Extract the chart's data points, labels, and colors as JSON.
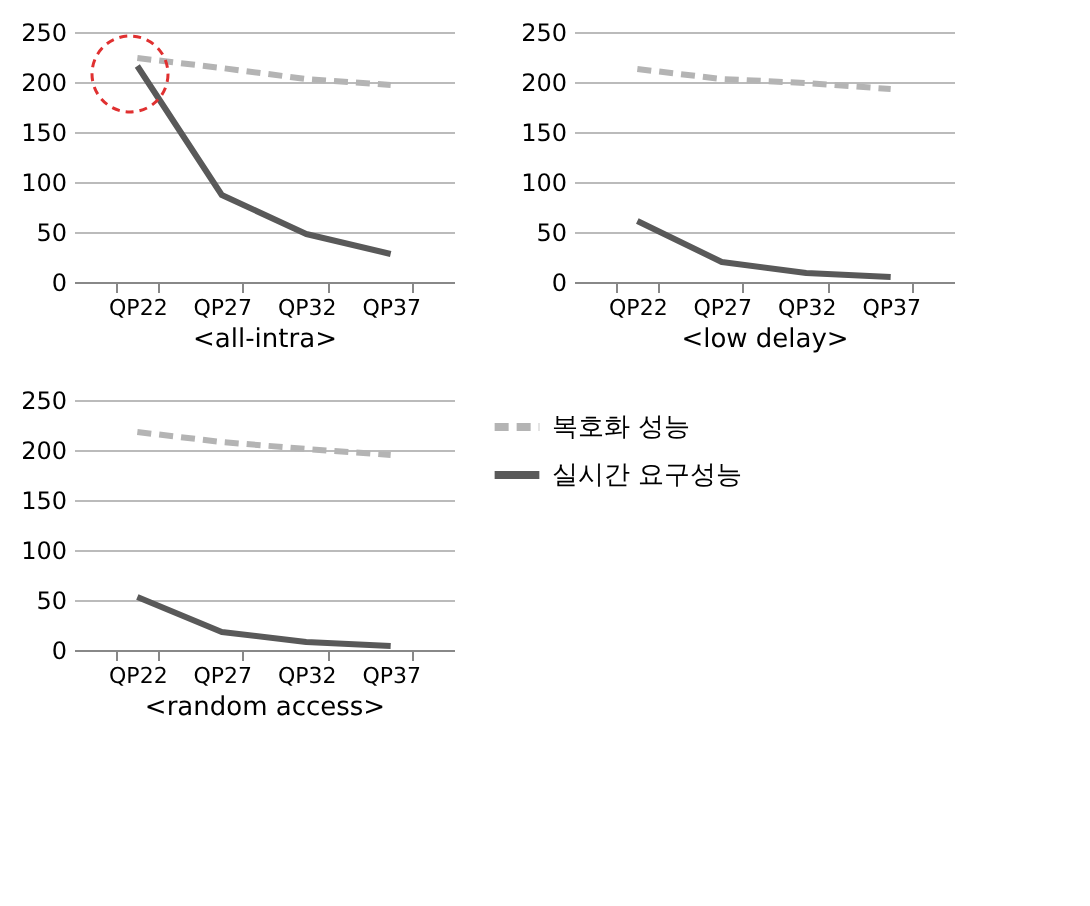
{
  "chart_data": [
    {
      "type": "line",
      "xlabel": "<all-intra>",
      "categories": [
        "QP22",
        "QP27",
        "QP32",
        "QP37"
      ],
      "ylim": [
        0,
        250
      ],
      "yticks": [
        0,
        50,
        100,
        150,
        200,
        250
      ],
      "grid": "y",
      "legend": false,
      "series": [
        {
          "color": "#b4b4b4",
          "line_style": "dashed",
          "values": [
            224,
            214,
            203,
            197
          ]
        },
        {
          "color": "#595959",
          "line_style": "solid",
          "values": [
            216,
            87,
            48,
            28
          ]
        }
      ]
    },
    {
      "type": "line",
      "xlabel": "<low delay>",
      "categories": [
        "QP22",
        "QP27",
        "QP32",
        "QP37"
      ],
      "ylim": [
        0,
        250
      ],
      "yticks": [
        0,
        50,
        100,
        150,
        200,
        250
      ],
      "grid": "y",
      "legend": false,
      "series": [
        {
          "color": "#b4b4b4",
          "line_style": "dashed",
          "values": [
            213,
            203,
            199,
            193
          ]
        },
        {
          "color": "#595959",
          "line_style": "solid",
          "values": [
            61,
            20,
            9,
            5
          ]
        }
      ]
    },
    {
      "type": "line",
      "xlabel": "<random access>",
      "categories": [
        "QP22",
        "QP27",
        "QP32",
        "QP37"
      ],
      "ylim": [
        0,
        250
      ],
      "yticks": [
        0,
        50,
        100,
        150,
        200,
        250
      ],
      "grid": "y",
      "legend": "right",
      "series": [
        {
          "name": "복호화 성능",
          "color": "#b4b4b4",
          "line_style": "dashed",
          "values": [
            218,
            208,
            201,
            195
          ]
        },
        {
          "name": "실시간 요구성능",
          "color": "#595959",
          "line_style": "solid",
          "values": [
            53,
            18,
            8,
            4
          ]
        }
      ]
    }
  ]
}
